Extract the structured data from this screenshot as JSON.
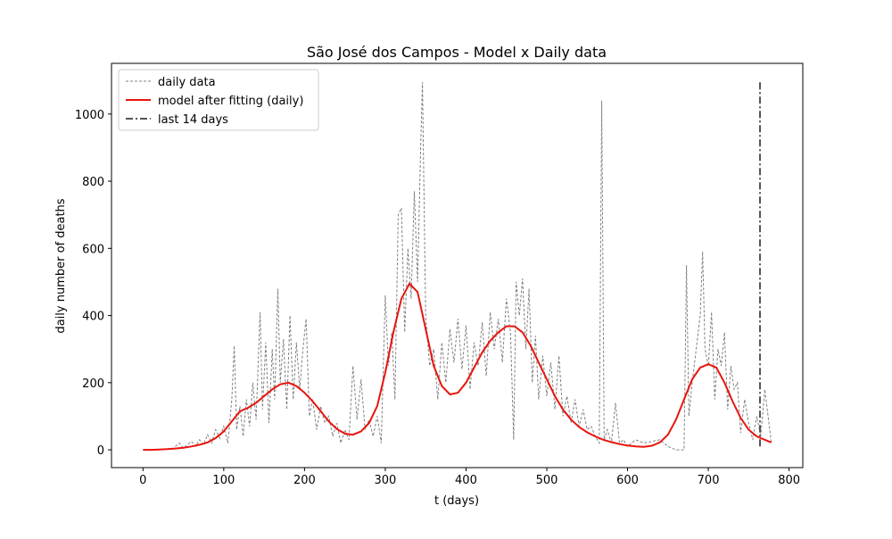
{
  "chart_data": {
    "type": "line",
    "title": "São José dos Campos - Model x Daily data",
    "x_label": "t (days)",
    "y_label": "daily number of deaths",
    "xlim": [
      -39,
      817
    ],
    "ylim": [
      -53,
      1151
    ],
    "xticks": [
      0,
      100,
      200,
      300,
      400,
      500,
      600,
      700,
      800
    ],
    "yticks": [
      0,
      200,
      400,
      600,
      800,
      1000
    ],
    "legend": "upper left",
    "series": [
      {
        "name": "daily data",
        "color": "#808080",
        "style": "dashed",
        "x": [
          40,
          45,
          50,
          55,
          60,
          65,
          70,
          75,
          80,
          85,
          90,
          95,
          100,
          105,
          110,
          113,
          116,
          120,
          124,
          128,
          132,
          136,
          140,
          145,
          148,
          152,
          156,
          160,
          163,
          167,
          170,
          174,
          178,
          182,
          186,
          190,
          194,
          198,
          202,
          206,
          210,
          215,
          220,
          225,
          230,
          235,
          240,
          245,
          250,
          255,
          260,
          265,
          270,
          275,
          280,
          285,
          290,
          295,
          300,
          304,
          308,
          312,
          316,
          320,
          324,
          328,
          332,
          336,
          340,
          344,
          346,
          350,
          355,
          360,
          365,
          370,
          375,
          380,
          385,
          390,
          395,
          400,
          405,
          410,
          415,
          420,
          425,
          430,
          435,
          440,
          445,
          450,
          455,
          459,
          462,
          466,
          470,
          474,
          478,
          482,
          486,
          490,
          495,
          500,
          505,
          510,
          515,
          520,
          525,
          530,
          535,
          540,
          545,
          550,
          555,
          560,
          565,
          568,
          571,
          575,
          580,
          585,
          590,
          595,
          600,
          610,
          620,
          630,
          640,
          650,
          660,
          670,
          673,
          676,
          680,
          685,
          690,
          693,
          696,
          700,
          704,
          708,
          712,
          716,
          720,
          724,
          728,
          732,
          736,
          740,
          745,
          750,
          755,
          760,
          765,
          770,
          775,
          778
        ],
        "values": [
          10,
          20,
          5,
          15,
          25,
          10,
          30,
          15,
          45,
          20,
          60,
          35,
          70,
          20,
          150,
          310,
          60,
          130,
          40,
          150,
          70,
          200,
          90,
          410,
          120,
          320,
          80,
          300,
          150,
          480,
          200,
          330,
          120,
          400,
          150,
          320,
          180,
          300,
          390,
          100,
          150,
          60,
          130,
          80,
          100,
          40,
          80,
          20,
          60,
          30,
          250,
          90,
          210,
          60,
          90,
          40,
          100,
          20,
          460,
          250,
          350,
          150,
          700,
          720,
          350,
          600,
          450,
          770,
          500,
          920,
          1095,
          400,
          250,
          300,
          150,
          320,
          200,
          360,
          260,
          390,
          240,
          370,
          180,
          320,
          250,
          380,
          220,
          410,
          300,
          390,
          260,
          450,
          350,
          30,
          500,
          400,
          510,
          300,
          480,
          200,
          340,
          150,
          280,
          160,
          260,
          120,
          280,
          100,
          160,
          80,
          150,
          70,
          120,
          60,
          70,
          40,
          20,
          1040,
          30,
          60,
          20,
          140,
          20,
          30,
          10,
          30,
          20,
          25,
          30,
          10,
          0,
          0,
          550,
          100,
          200,
          300,
          400,
          590,
          300,
          250,
          410,
          150,
          300,
          250,
          350,
          120,
          250,
          180,
          200,
          50,
          150,
          80,
          30,
          100,
          40,
          180,
          80,
          20
        ]
      },
      {
        "name": "model after fitting (daily)",
        "color": "#e8140c",
        "style": "solid",
        "x": [
          0,
          10,
          20,
          30,
          40,
          50,
          60,
          70,
          80,
          90,
          100,
          110,
          120,
          130,
          140,
          150,
          160,
          170,
          180,
          190,
          200,
          210,
          220,
          230,
          240,
          250,
          260,
          270,
          280,
          290,
          300,
          310,
          320,
          330,
          340,
          350,
          360,
          370,
          380,
          390,
          400,
          410,
          420,
          430,
          440,
          450,
          460,
          470,
          480,
          490,
          500,
          510,
          520,
          530,
          540,
          550,
          560,
          570,
          580,
          590,
          600,
          610,
          620,
          630,
          640,
          650,
          660,
          670,
          680,
          690,
          700,
          710,
          720,
          730,
          740,
          750,
          760,
          770,
          778
        ],
        "values": [
          0,
          0,
          1,
          2,
          4,
          6,
          10,
          15,
          22,
          35,
          55,
          85,
          115,
          125,
          140,
          160,
          180,
          195,
          200,
          190,
          170,
          145,
          115,
          85,
          62,
          48,
          45,
          55,
          80,
          130,
          230,
          350,
          450,
          495,
          470,
          360,
          250,
          190,
          165,
          170,
          200,
          245,
          290,
          325,
          350,
          368,
          368,
          350,
          310,
          260,
          210,
          160,
          120,
          90,
          68,
          52,
          40,
          30,
          23,
          17,
          13,
          10,
          9,
          12,
          22,
          45,
          90,
          150,
          210,
          245,
          255,
          245,
          200,
          145,
          95,
          60,
          40,
          30,
          22
        ]
      },
      {
        "name": "last 14 days",
        "color": "#555555",
        "style": "dashdot",
        "x": [
          764,
          764
        ],
        "values": [
          10,
          1095
        ]
      }
    ]
  }
}
